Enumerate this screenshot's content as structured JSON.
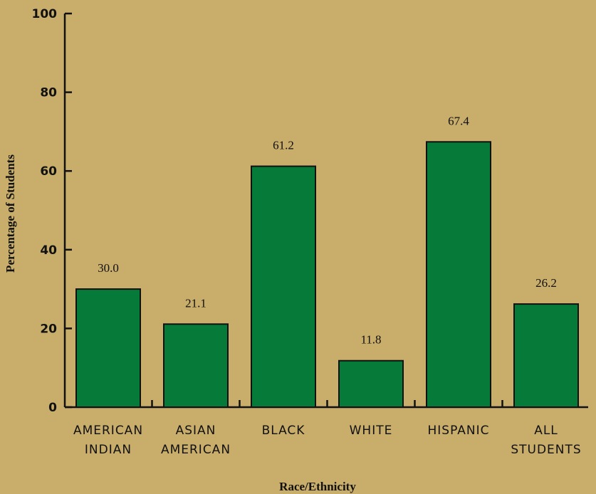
{
  "chart_data": {
    "type": "bar",
    "categories": [
      [
        "AMERICAN",
        "INDIAN"
      ],
      [
        "ASIAN",
        "AMERICAN"
      ],
      [
        "BLACK"
      ],
      [
        "WHITE"
      ],
      [
        "HISPANIC"
      ],
      [
        "ALL",
        "STUDENTS"
      ]
    ],
    "values": [
      30.0,
      21.1,
      61.2,
      11.8,
      67.4,
      26.2
    ],
    "value_labels": [
      "30.0",
      "21.1",
      "61.2",
      "11.8",
      "67.4",
      "26.2"
    ],
    "xlabel": "Race/Ethnicity",
    "ylabel": "Percentage of Students",
    "ylim": [
      0,
      100
    ],
    "yticks": [
      "0",
      "20",
      "40",
      "60",
      "80",
      "100"
    ],
    "grid": false,
    "colors": {
      "bar": "#067a38",
      "background": "#c8ad6b",
      "axis": "#111111"
    }
  }
}
